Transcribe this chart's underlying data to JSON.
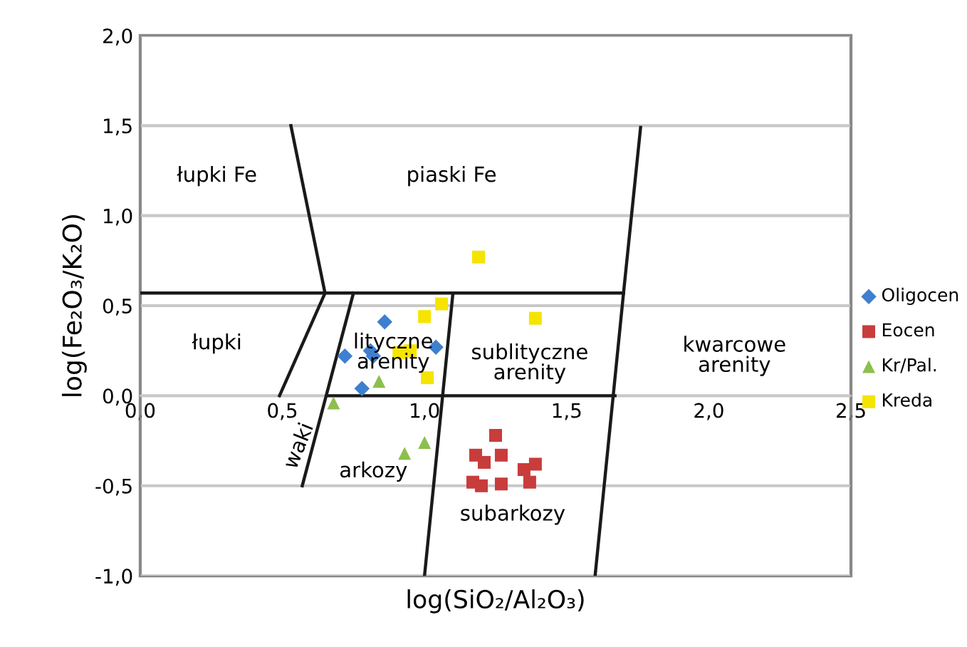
{
  "chart_data": {
    "type": "scatter",
    "xlabel": "log(SiO₂/Al₂O₃)",
    "ylabel": "log(Fe₂O₃/K₂O)",
    "xlim": [
      0,
      2.5
    ],
    "ylim": [
      -1.0,
      2.0
    ],
    "xticks": [
      {
        "value": 0,
        "label": "0,0"
      },
      {
        "value": 0.5,
        "label": "0,5"
      },
      {
        "value": 1.0,
        "label": "1,0"
      },
      {
        "value": 1.5,
        "label": "1,5"
      },
      {
        "value": 2.0,
        "label": "2,0"
      },
      {
        "value": 2.5,
        "label": "2,5"
      }
    ],
    "yticks": [
      {
        "value": -1.0,
        "label": "-1,0"
      },
      {
        "value": -0.5,
        "label": "-0,5"
      },
      {
        "value": 0,
        "label": "0,0"
      },
      {
        "value": 0.5,
        "label": "0,5"
      },
      {
        "value": 1.0,
        "label": "1,0"
      },
      {
        "value": 1.5,
        "label": "1,5"
      },
      {
        "value": 2.0,
        "label": "2,0"
      }
    ],
    "grid": "y",
    "legend": "right",
    "series": [
      {
        "name": "Oligocen",
        "color": "#3f7fcf",
        "marker": "diamond",
        "x": [
          0.86,
          0.72,
          0.81,
          0.82,
          1.04,
          0.78
        ],
        "values": [
          0.41,
          0.22,
          0.25,
          0.22,
          0.27,
          0.04
        ]
      },
      {
        "name": "Eocen",
        "color": "#c83c3c",
        "marker": "square",
        "x": [
          1.25,
          1.18,
          1.21,
          1.27,
          1.35,
          1.39,
          1.17,
          1.2,
          1.27,
          1.37
        ],
        "values": [
          -0.22,
          -0.33,
          -0.37,
          -0.33,
          -0.41,
          -0.38,
          -0.48,
          -0.5,
          -0.49,
          -0.48
        ]
      },
      {
        "name": "Kr/Pal.",
        "color": "#8cbf4c",
        "marker": "triangle",
        "x": [
          0.68,
          0.84,
          0.93,
          1.0
        ],
        "values": [
          -0.04,
          0.08,
          -0.32,
          -0.26
        ]
      },
      {
        "name": "Kreda",
        "color": "#f5e400",
        "marker": "square",
        "x": [
          1.19,
          1.0,
          1.06,
          1.39,
          0.91,
          0.95,
          1.01
        ],
        "values": [
          0.77,
          0.44,
          0.51,
          0.43,
          0.24,
          0.25,
          0.1
        ]
      },
      {
        "type": "line",
        "color": "#1a1a1a",
        "x": [
          0.53,
          0.65
        ],
        "values": [
          1.5,
          0.57
        ]
      },
      {
        "type": "line",
        "color": "#1a1a1a",
        "x": [
          0.0,
          1.7
        ],
        "values": [
          0.57,
          0.57
        ]
      },
      {
        "type": "line",
        "color": "#1a1a1a",
        "x": [
          1.76,
          1.7,
          1.6
        ],
        "values": [
          1.49,
          0.57,
          -1.0
        ]
      },
      {
        "type": "line",
        "color": "#1a1a1a",
        "x": [
          0.66,
          1.67
        ],
        "values": [
          0.0,
          0.0
        ]
      },
      {
        "type": "line",
        "color": "#1a1a1a",
        "x": [
          0.65,
          0.49
        ],
        "values": [
          0.57,
          0.0
        ]
      },
      {
        "type": "line",
        "color": "#1a1a1a",
        "x": [
          0.75,
          0.57
        ],
        "values": [
          0.57,
          -0.5
        ]
      },
      {
        "type": "line",
        "color": "#1a1a1a",
        "x": [
          1.1,
          1.0
        ],
        "values": [
          0.57,
          -1.0
        ]
      }
    ],
    "annotations": [
      "łupki Fe",
      "piaski Fe",
      "łupki",
      "lityczne\narenity",
      "sublityczne\narenity",
      "kwarcowe\narenity",
      "waki",
      "arkozy",
      "subarkozy"
    ]
  }
}
